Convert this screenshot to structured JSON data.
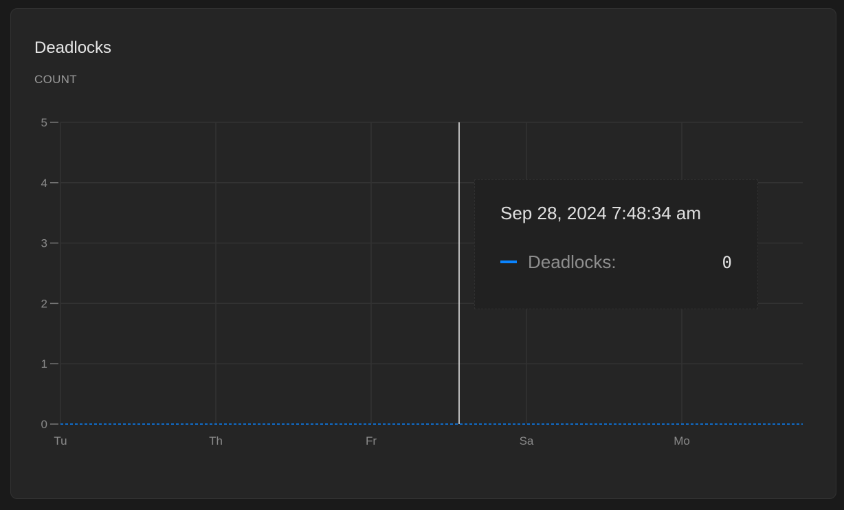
{
  "chart_data": {
    "type": "line",
    "title": "Deadlocks",
    "ylabel": "COUNT",
    "xlabel": "",
    "ylim": [
      0,
      5
    ],
    "yticks": [
      0,
      1,
      2,
      3,
      4,
      5
    ],
    "xticks": [
      "Tu",
      "Th",
      "Fr",
      "Sa",
      "Mo"
    ],
    "grid": true,
    "series": [
      {
        "name": "Deadlocks",
        "color": "#0a84ff",
        "values": [
          0,
          0,
          0,
          0,
          0
        ]
      }
    ]
  },
  "tooltip": {
    "time": "Sep 28, 2024 7:48:34 am",
    "label": "Deadlocks:",
    "value": "0",
    "color": "#0a84ff"
  }
}
